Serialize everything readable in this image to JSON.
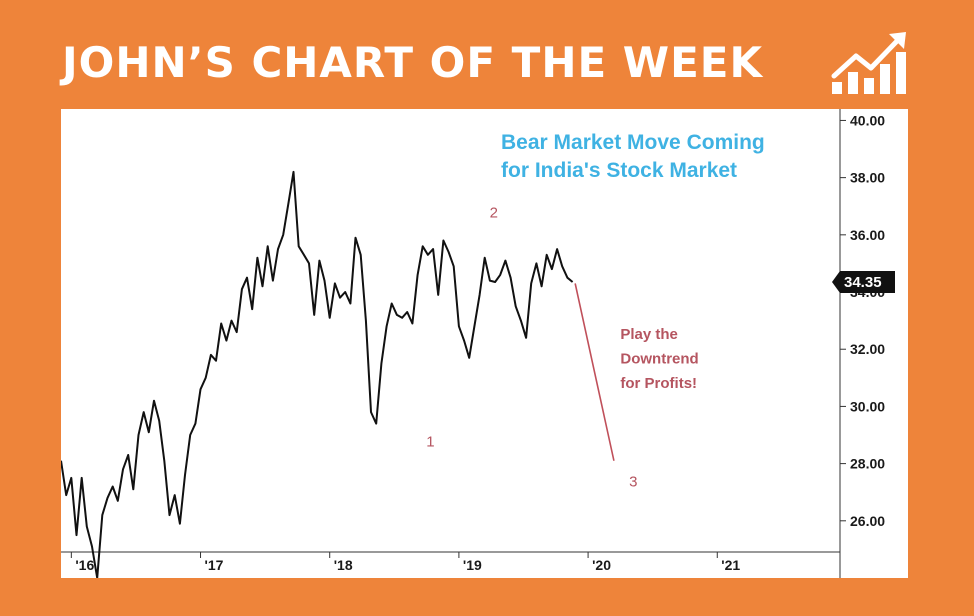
{
  "banner": {
    "title": "JOHN’S CHART OF THE WEEK",
    "logo_icon": "rising-chart-icon"
  },
  "colors": {
    "frame": "#ee843a",
    "line": "#111111",
    "headline": "#3fb2e3",
    "annotation": "#b55560"
  },
  "chart_data": {
    "type": "line",
    "x_ticks": [
      {
        "label": "'16",
        "x": 2016.0
      },
      {
        "label": "'17",
        "x": 2017.0
      },
      {
        "label": "'18",
        "x": 2018.0
      },
      {
        "label": "'19",
        "x": 2019.0
      },
      {
        "label": "'20",
        "x": 2020.0
      },
      {
        "label": "'21",
        "x": 2021.0
      }
    ],
    "y_ticks": [
      "40.00",
      "38.00",
      "36.00",
      "34.00",
      "32.00",
      "30.00",
      "28.00",
      "26.00"
    ],
    "xlim": [
      2015.92,
      2021.95
    ],
    "ylim": [
      24.0,
      40.4
    ],
    "y_axis_side": "right",
    "grid": false,
    "last_value_label": "34.35",
    "headline": [
      "Bear Market Move Coming",
      "for India's Stock Market"
    ],
    "series": [
      {
        "x": [
          2015.92,
          2015.96,
          2016.0,
          2016.04,
          2016.08,
          2016.12,
          2016.16,
          2016.2,
          2016.24,
          2016.28,
          2016.32,
          2016.36,
          2016.4,
          2016.44,
          2016.48,
          2016.52,
          2016.56,
          2016.6,
          2016.64,
          2016.68,
          2016.72,
          2016.76,
          2016.8,
          2016.84,
          2016.88,
          2016.92,
          2016.96,
          2017.0,
          2017.04,
          2017.08,
          2017.12,
          2017.16,
          2017.2,
          2017.24,
          2017.28,
          2017.32,
          2017.36,
          2017.4,
          2017.44,
          2017.48,
          2017.52,
          2017.56,
          2017.6,
          2017.64,
          2017.68,
          2017.72,
          2017.76,
          2017.8,
          2017.84,
          2017.88,
          2017.92,
          2017.96,
          2018.0,
          2018.04,
          2018.08,
          2018.12,
          2018.16,
          2018.2,
          2018.24,
          2018.28,
          2018.32,
          2018.36,
          2018.4,
          2018.44,
          2018.48,
          2018.52,
          2018.56,
          2018.6,
          2018.64,
          2018.68,
          2018.72,
          2018.76,
          2018.8,
          2018.84,
          2018.88,
          2018.92,
          2018.96,
          2019.0,
          2019.04,
          2019.08,
          2019.12,
          2019.16,
          2019.2,
          2019.24,
          2019.28,
          2019.32,
          2019.36,
          2019.4,
          2019.44,
          2019.48,
          2019.52,
          2019.56,
          2019.6,
          2019.64,
          2019.68,
          2019.72,
          2019.76,
          2019.8,
          2019.84,
          2019.88
        ],
        "y": [
          28.1,
          26.9,
          27.5,
          25.5,
          27.5,
          25.8,
          25.1,
          24.0,
          26.2,
          26.8,
          27.2,
          26.7,
          27.8,
          28.3,
          27.1,
          29.0,
          29.8,
          29.1,
          30.2,
          29.5,
          28.1,
          26.2,
          26.9,
          25.9,
          27.6,
          29.0,
          29.4,
          30.6,
          31.0,
          31.8,
          31.6,
          32.9,
          32.3,
          33.0,
          32.6,
          34.1,
          34.5,
          33.4,
          35.2,
          34.2,
          35.6,
          34.4,
          35.5,
          36.0,
          37.1,
          38.2,
          35.6,
          35.3,
          35.0,
          33.2,
          35.1,
          34.4,
          33.1,
          34.3,
          33.8,
          34.0,
          33.6,
          35.9,
          35.3,
          33.0,
          29.8,
          29.4,
          31.5,
          32.8,
          33.6,
          33.2,
          33.1,
          33.3,
          32.9,
          34.6,
          35.6,
          35.3,
          35.5,
          33.9,
          35.8,
          35.4,
          34.9,
          32.8,
          32.3,
          31.7,
          32.8,
          33.9,
          35.2,
          34.4,
          34.35,
          34.6,
          35.1,
          34.5,
          33.5,
          33.0,
          32.4,
          34.3,
          35.0,
          34.2,
          35.3,
          34.8,
          35.5,
          34.9,
          34.5,
          34.35
        ]
      }
    ],
    "annotations": [
      {
        "text": "1",
        "x": 2018.78,
        "y": 28.6
      },
      {
        "text": "2",
        "x": 2019.27,
        "y": 36.6
      },
      {
        "text": "3",
        "x": 2020.35,
        "y": 27.2
      },
      {
        "text": "Play the",
        "x": 2020.25,
        "y": 32.35
      },
      {
        "text": "Downtrend",
        "x": 2020.25,
        "y": 31.5
      },
      {
        "text": "for Profits!",
        "x": 2020.25,
        "y": 30.65
      }
    ],
    "projection": {
      "x": [
        2019.9,
        2020.2
      ],
      "y": [
        34.3,
        28.1
      ]
    }
  }
}
